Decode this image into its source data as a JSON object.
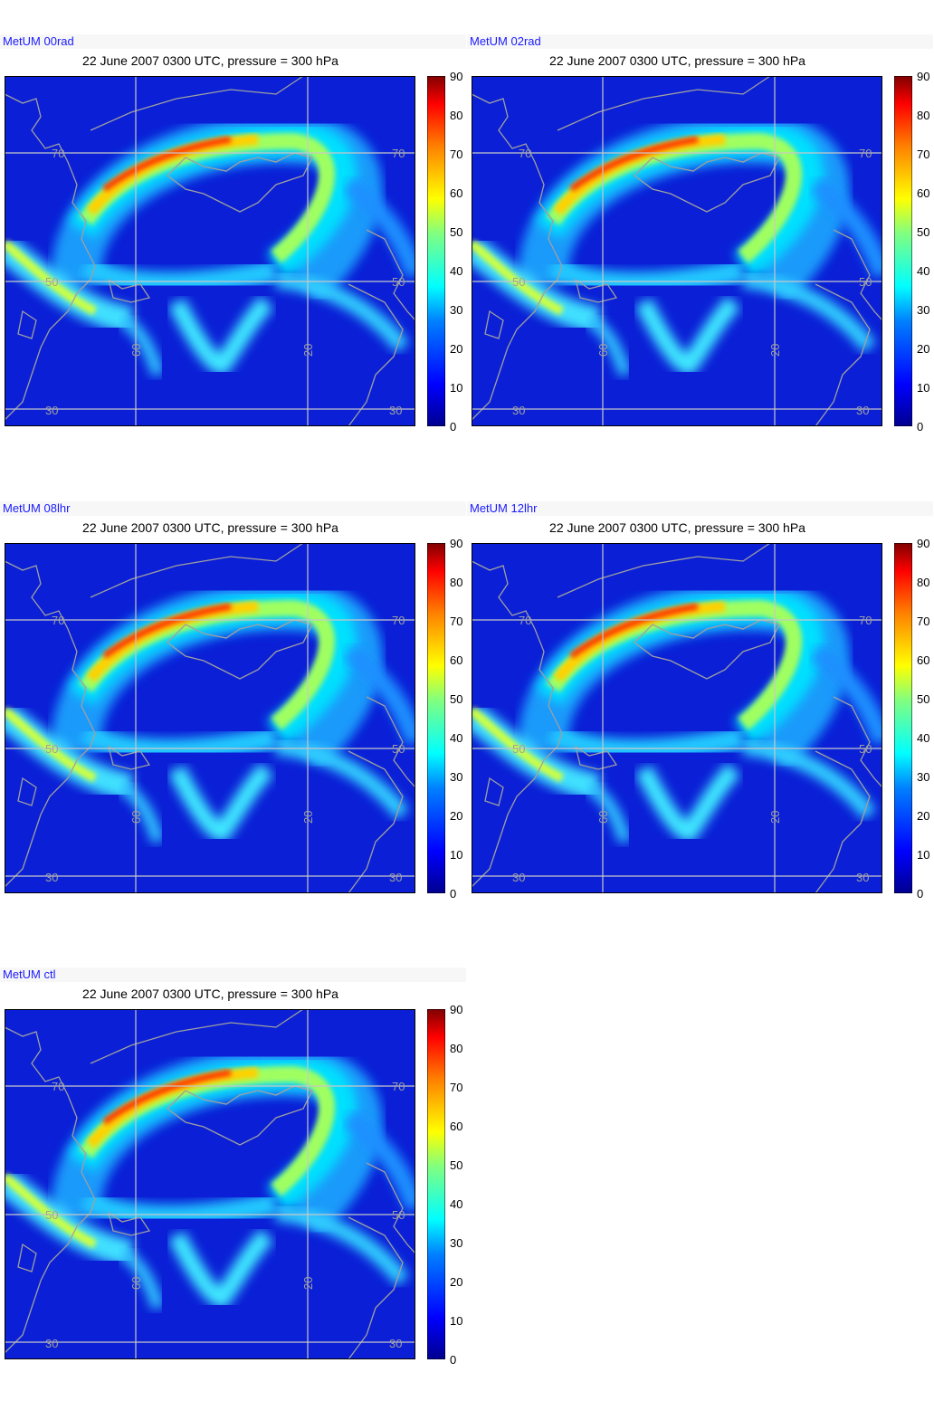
{
  "panels": [
    {
      "label": "MetUM 00rad",
      "title": "22 June 2007 0300 UTC, pressure = 300 hPa"
    },
    {
      "label": "MetUM 02rad",
      "title": "22 June 2007 0300 UTC, pressure = 300 hPa"
    },
    {
      "label": "MetUM 08lhr",
      "title": "22 June 2007 0300 UTC, pressure = 300 hPa"
    },
    {
      "label": "MetUM 12lhr",
      "title": "22 June 2007 0300 UTC, pressure = 300 hPa"
    },
    {
      "label": "MetUM ctl",
      "title": "22 June 2007 0300 UTC, pressure = 300 hPa"
    }
  ],
  "map_labels": {
    "lat_70": "70",
    "lat_50": "50",
    "lat_30": "30",
    "lon_60": "60",
    "lon_20": "20"
  },
  "colorbar": {
    "ticks": [
      "90",
      "80",
      "70",
      "60",
      "50",
      "40",
      "30",
      "20",
      "10",
      "0"
    ],
    "min": 0,
    "max": 90
  },
  "colors": {
    "land_outline": "#a0a0a0",
    "grid": "#c8c8c8",
    "background_field": "#0a1fd6",
    "label_text": "#1a1aff"
  }
}
